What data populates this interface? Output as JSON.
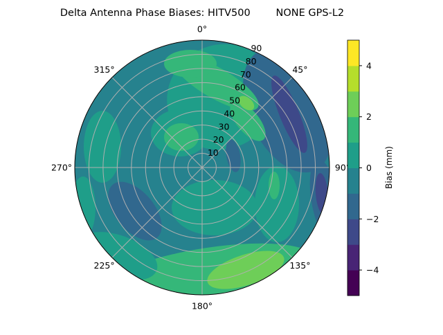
{
  "chart_data": {
    "type": "heatmap",
    "subtype": "polar filled contour",
    "title": "Delta Antenna Phase Biases: HITV500        NONE GPS-L2",
    "theta_direction": "clockwise",
    "theta_zero": "north (top)",
    "theta_ticks": [
      "0°",
      "45°",
      "90°",
      "135°",
      "180°",
      "225°",
      "270°",
      "315°"
    ],
    "r_ticks": [
      "10",
      "20",
      "30",
      "40",
      "50",
      "60",
      "70",
      "80",
      "90"
    ],
    "r_range": [
      0,
      90
    ],
    "grid": true,
    "colorbar": {
      "label": "Bias (mm)",
      "range": [
        -5,
        5
      ],
      "levels": [
        -5,
        -4,
        -3,
        -2,
        -1,
        0,
        1,
        2,
        3,
        4,
        5
      ],
      "tick_labels": [
        "4",
        "2",
        "0",
        "−2",
        "−4"
      ],
      "colormap": "viridis",
      "colors": [
        "#440154",
        "#482475",
        "#3e4989",
        "#31688e",
        "#26828e",
        "#1f9e89",
        "#35b779",
        "#6ece58",
        "#b5de2b",
        "#fde725"
      ]
    },
    "dominant_level_range": [
      -1,
      0
    ],
    "notable_regions": [
      {
        "description_level": "2 to 3",
        "azimuth_deg": 150,
        "zenith_deg": 80
      },
      {
        "description_level": "2 to 3",
        "azimuth_deg": 30,
        "zenith_deg": 50
      },
      {
        "description_level": "-3 to -2",
        "azimuth_deg": 45,
        "zenith_deg": 80
      },
      {
        "description_level": "-3 to -2",
        "azimuth_deg": 100,
        "zenith_deg": 88
      },
      {
        "description_level": "-2 to -1",
        "azimuth_deg": 235,
        "zenith_deg": 60
      },
      {
        "description_level": "1 to 2",
        "azimuth_deg": 330,
        "zenith_deg": 30
      }
    ]
  }
}
